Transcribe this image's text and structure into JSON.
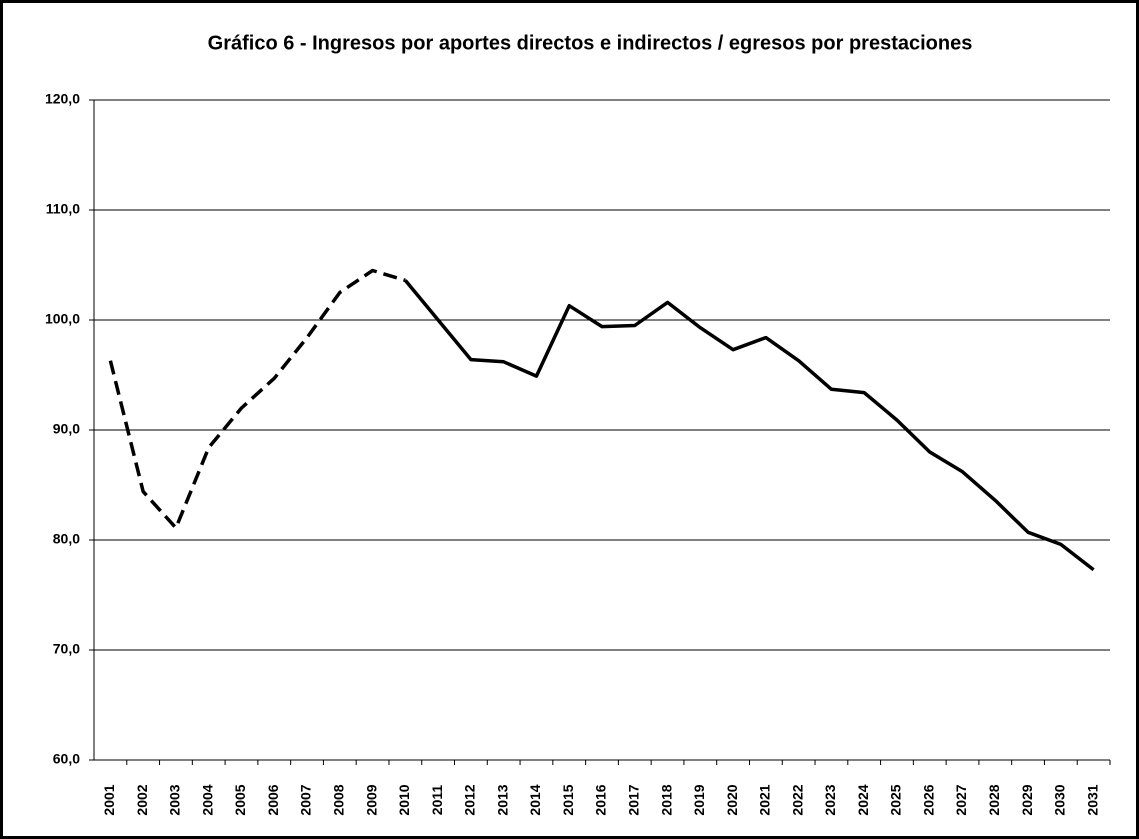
{
  "chart_data": {
    "type": "line",
    "title": "Gráfico 6 - Ingresos por aportes directos e indirectos / egresos por prestaciones",
    "categories": [
      "2001",
      "2002",
      "2003",
      "2004",
      "2005",
      "2006",
      "2007",
      "2008",
      "2009",
      "2010",
      "2011",
      "2012",
      "2013",
      "2014",
      "2015",
      "2016",
      "2017",
      "2018",
      "2019",
      "2020",
      "2021",
      "2022",
      "2023",
      "2024",
      "2025",
      "2026",
      "2027",
      "2028",
      "2029",
      "2030",
      "2031"
    ],
    "series": [
      {
        "color": "#000000",
        "style": "dashed",
        "values": [
          96.3,
          84.4,
          81.1,
          88.4,
          92.0,
          94.7,
          98.4,
          102.5,
          104.5,
          103.6,
          null,
          null,
          null,
          null,
          null,
          null,
          null,
          null,
          null,
          null,
          null,
          null,
          null,
          null,
          null,
          null,
          null,
          null,
          null,
          null,
          null
        ]
      },
      {
        "color": "#000000",
        "style": "solid",
        "values": [
          null,
          null,
          null,
          null,
          null,
          null,
          null,
          null,
          null,
          103.6,
          100.0,
          96.4,
          96.2,
          94.9,
          101.3,
          99.4,
          99.5,
          101.6,
          99.3,
          97.3,
          98.4,
          96.3,
          93.7,
          93.4,
          90.9,
          88.0,
          86.2,
          83.6,
          80.7,
          79.6,
          77.3
        ]
      }
    ],
    "ylim": [
      60,
      120
    ],
    "yticks": [
      {
        "value": 60,
        "label": "60,0"
      },
      {
        "value": 70,
        "label": "70,0"
      },
      {
        "value": 80,
        "label": "80,0"
      },
      {
        "value": 90,
        "label": "90,0"
      },
      {
        "value": 100,
        "label": "100,0"
      },
      {
        "value": 110,
        "label": "110,0"
      },
      {
        "value": 120,
        "label": "120,0"
      }
    ],
    "grid": true
  }
}
